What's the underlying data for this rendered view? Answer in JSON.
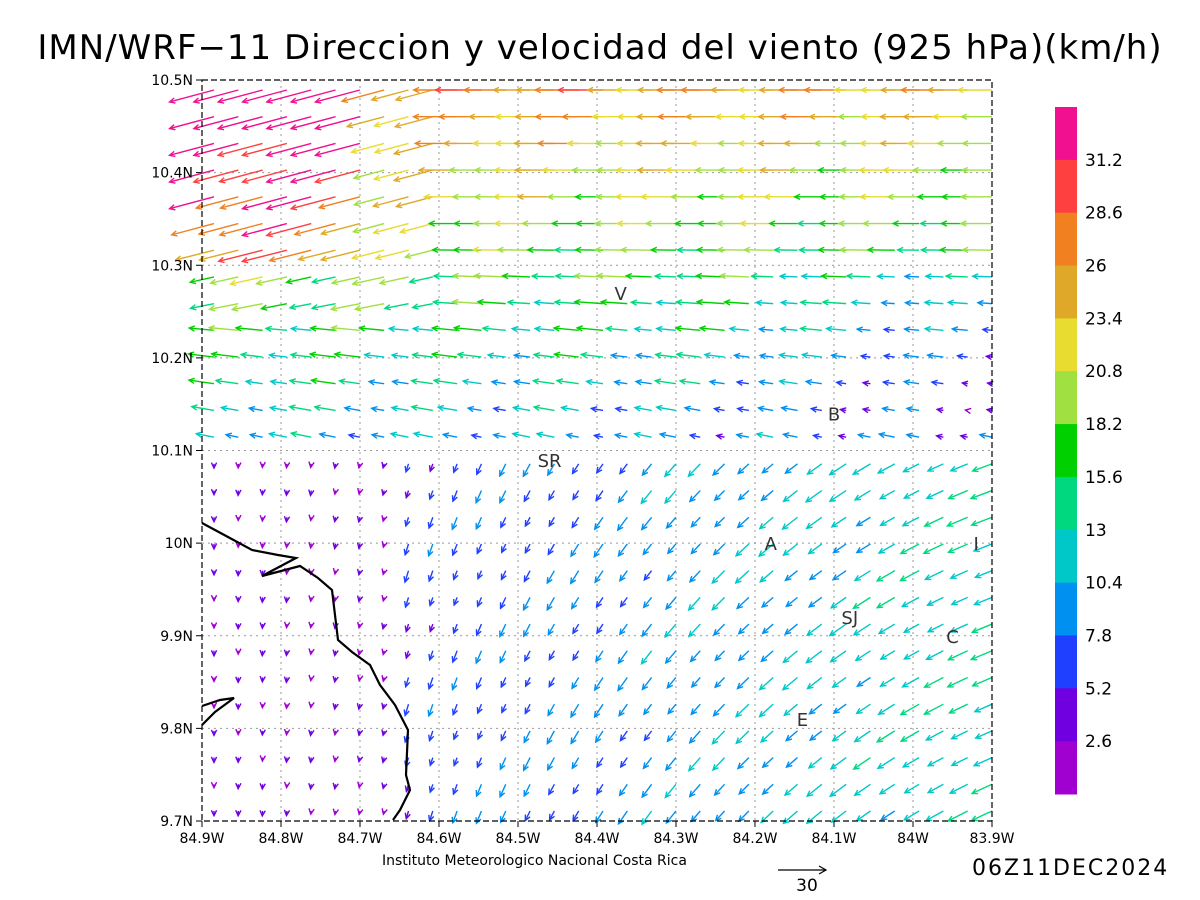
{
  "title": "IMN/WRF−11 Direccion y velocidad del viento (925 hPa)(km/h)",
  "footer": {
    "credit": "Instituto Meteorologico Nacional Costa Rica",
    "timestamp": "06Z11DEC2024",
    "reference_vector_label": "30"
  },
  "axes": {
    "x_ticks": [
      "84.9W",
      "84.8W",
      "84.7W",
      "84.6W",
      "84.5W",
      "84.4W",
      "84.3W",
      "84.2W",
      "84.1W",
      "84W",
      "83.9W"
    ],
    "y_ticks": [
      "10.5N",
      "10.4N",
      "10.3N",
      "10.2N",
      "10.1N",
      "10N",
      "9.9N",
      "9.8N",
      "9.7N"
    ],
    "x_range_lon": [
      -84.9,
      -83.9
    ],
    "y_range_lat": [
      9.7,
      10.5
    ],
    "grid": "dotted"
  },
  "colorbar": {
    "labels": [
      "31.2",
      "28.6",
      "26",
      "23.4",
      "20.8",
      "18.2",
      "15.6",
      "13",
      "10.4",
      "7.8",
      "5.2",
      "2.6"
    ],
    "colors_top_to_bottom": [
      "#f01090",
      "#ff4040",
      "#f08020",
      "#e0a828",
      "#e8dc30",
      "#a0e040",
      "#00d000",
      "#00d880",
      "#00c8c8",
      "#0090f0",
      "#2040ff",
      "#7000e0",
      "#a000d0"
    ]
  },
  "places": [
    {
      "label": "V",
      "lon": -84.37,
      "lat": 10.27
    },
    {
      "label": "B",
      "lon": -84.1,
      "lat": 10.14
    },
    {
      "label": "SR",
      "lon": -84.46,
      "lat": 10.09
    },
    {
      "label": "A",
      "lon": -84.18,
      "lat": 10.0
    },
    {
      "label": "I",
      "lon": -83.92,
      "lat": 10.0
    },
    {
      "label": "SJ",
      "lon": -84.08,
      "lat": 9.92
    },
    {
      "label": "C",
      "lon": -83.95,
      "lat": 9.9
    },
    {
      "label": "E",
      "lon": -84.14,
      "lat": 9.81
    }
  ],
  "wind_field": {
    "lon_range": [
      -84.9,
      -83.9
    ],
    "lat_range": [
      9.7,
      10.5
    ],
    "grid_columns": 33,
    "grid_rows": 28,
    "units": "km/h"
  }
}
